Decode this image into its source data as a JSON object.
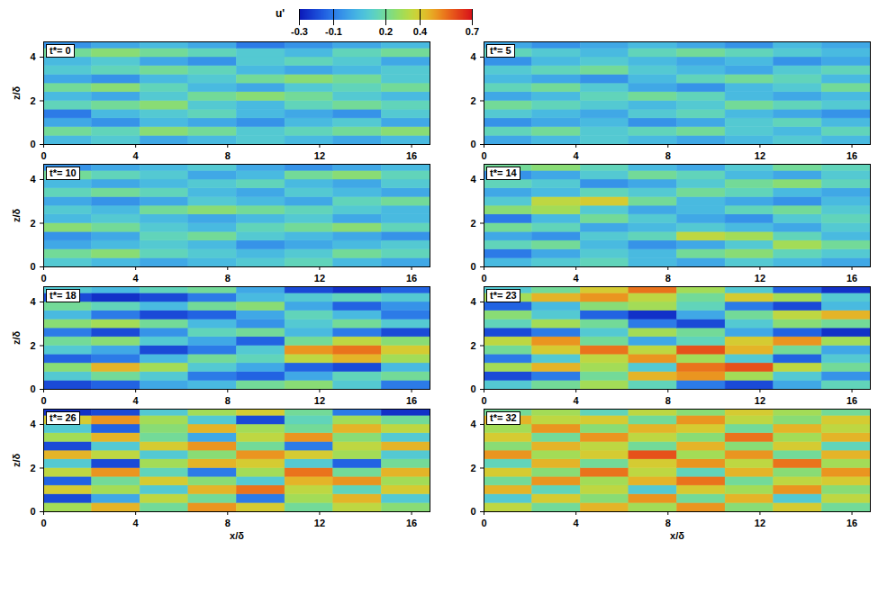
{
  "chart_data": {
    "type": "heatmap",
    "x_label": "x/δ",
    "y_label": "z/δ",
    "xlim": [
      0,
      16.8
    ],
    "ylim": [
      0,
      4.7
    ],
    "xticks": [
      0,
      4,
      8,
      12,
      16
    ],
    "yticks": [
      0,
      2,
      4
    ],
    "x_edges": [
      0,
      2.1,
      4.2,
      6.3,
      8.4,
      10.5,
      12.6,
      14.7,
      16.8
    ],
    "y_edges": [
      0,
      0.4,
      0.8,
      1.2,
      1.6,
      2.0,
      2.4,
      2.8,
      3.2,
      3.6,
      4.0,
      4.4,
      4.7
    ],
    "colorbar": {
      "label": "u'",
      "range": [
        -0.3,
        0.7
      ],
      "ticks": [
        -0.3,
        -0.1,
        0.2,
        0.4,
        0.7
      ]
    },
    "panels": [
      {
        "label": "t*= 0",
        "cells": [
          [
            0.05,
            0.1,
            0.0,
            0.05,
            0.1,
            0.05,
            0.0,
            0.05
          ],
          [
            0.2,
            0.15,
            0.25,
            0.2,
            0.1,
            0.15,
            0.2,
            0.25
          ],
          [
            0.0,
            -0.05,
            0.05,
            0.0,
            -0.05,
            0.05,
            0.1,
            0.0
          ],
          [
            -0.1,
            0.05,
            0.1,
            0.15,
            0.05,
            0.0,
            -0.05,
            0.1
          ],
          [
            0.15,
            0.2,
            0.25,
            0.1,
            0.05,
            0.15,
            0.2,
            0.15
          ],
          [
            0.05,
            0.0,
            0.1,
            0.2,
            0.25,
            0.2,
            0.1,
            0.05
          ],
          [
            0.2,
            0.25,
            0.15,
            0.05,
            0.0,
            0.1,
            0.15,
            0.2
          ],
          [
            0.0,
            -0.05,
            0.05,
            0.1,
            0.2,
            0.25,
            0.2,
            0.1
          ],
          [
            0.1,
            0.15,
            0.2,
            0.15,
            0.05,
            0.0,
            0.05,
            0.1
          ],
          [
            0.05,
            0.1,
            0.0,
            -0.05,
            0.1,
            0.15,
            0.1,
            0.0
          ],
          [
            0.2,
            0.25,
            0.2,
            0.15,
            0.1,
            0.05,
            0.15,
            0.2
          ],
          [
            -0.05,
            0.0,
            0.05,
            0.0,
            -0.1,
            -0.05,
            0.0,
            0.05
          ]
        ]
      },
      {
        "label": "t*= 5",
        "cells": [
          [
            0.0,
            0.05,
            0.1,
            0.05,
            0.0,
            0.05,
            0.1,
            0.05
          ],
          [
            0.15,
            0.2,
            0.1,
            0.15,
            0.2,
            0.1,
            0.05,
            0.15
          ],
          [
            -0.05,
            0.0,
            0.05,
            -0.05,
            0.0,
            0.1,
            0.15,
            0.05
          ],
          [
            0.1,
            0.05,
            0.0,
            0.1,
            0.15,
            0.05,
            0.0,
            -0.05
          ],
          [
            0.2,
            0.15,
            0.1,
            0.05,
            0.1,
            0.2,
            0.15,
            0.1
          ],
          [
            0.0,
            0.05,
            0.15,
            0.2,
            0.15,
            0.05,
            0.0,
            0.05
          ],
          [
            0.15,
            0.2,
            0.1,
            0.0,
            -0.05,
            0.05,
            0.1,
            0.2
          ],
          [
            0.05,
            0.0,
            -0.05,
            0.05,
            0.15,
            0.2,
            0.15,
            0.05
          ],
          [
            0.1,
            0.15,
            0.2,
            0.1,
            0.05,
            0.0,
            0.1,
            0.15
          ],
          [
            -0.05,
            0.05,
            0.1,
            0.05,
            0.0,
            0.05,
            -0.05,
            0.0
          ],
          [
            0.15,
            0.1,
            0.05,
            0.15,
            0.2,
            0.15,
            0.1,
            0.05
          ],
          [
            0.0,
            -0.05,
            0.0,
            0.05,
            0.0,
            -0.05,
            0.05,
            0.0
          ]
        ]
      },
      {
        "label": "t*= 10",
        "cells": [
          [
            0.1,
            0.05,
            0.0,
            0.05,
            0.1,
            0.15,
            0.05,
            0.0
          ],
          [
            0.2,
            0.25,
            0.15,
            0.1,
            0.05,
            0.1,
            0.2,
            0.15
          ],
          [
            0.0,
            0.05,
            0.1,
            0.05,
            -0.05,
            0.0,
            0.05,
            0.1
          ],
          [
            -0.05,
            0.0,
            0.15,
            0.2,
            0.1,
            0.05,
            0.0,
            -0.05
          ],
          [
            0.25,
            0.2,
            0.1,
            0.05,
            0.15,
            0.2,
            0.25,
            0.15
          ],
          [
            0.05,
            0.1,
            0.05,
            0.0,
            0.05,
            0.1,
            0.0,
            0.05
          ],
          [
            0.1,
            0.05,
            0.2,
            0.25,
            0.2,
            0.15,
            0.1,
            0.05
          ],
          [
            0.0,
            -0.05,
            0.0,
            0.1,
            0.05,
            0.0,
            0.15,
            0.2
          ],
          [
            0.15,
            0.2,
            0.15,
            0.05,
            0.0,
            0.1,
            0.05,
            0.0
          ],
          [
            0.05,
            0.0,
            0.05,
            0.1,
            0.15,
            0.05,
            0.0,
            0.1
          ],
          [
            0.2,
            0.15,
            0.1,
            0.0,
            0.05,
            0.2,
            0.25,
            0.15
          ],
          [
            -0.05,
            0.0,
            0.05,
            0.1,
            0.0,
            -0.05,
            0.0,
            0.05
          ]
        ]
      },
      {
        "label": "t*= 14",
        "cells": [
          [
            0.05,
            0.1,
            0.15,
            0.05,
            0.0,
            0.1,
            0.05,
            0.0
          ],
          [
            -0.1,
            0.0,
            0.1,
            0.05,
            0.2,
            0.25,
            0.15,
            0.1
          ],
          [
            0.15,
            0.2,
            0.05,
            -0.05,
            0.0,
            0.1,
            0.3,
            0.2
          ],
          [
            0.0,
            -0.05,
            0.1,
            0.15,
            0.35,
            0.3,
            0.15,
            0.05
          ],
          [
            0.2,
            0.15,
            0.0,
            0.05,
            0.1,
            0.05,
            0.0,
            0.1
          ],
          [
            -0.1,
            0.05,
            0.2,
            0.1,
            0.0,
            -0.05,
            0.1,
            0.15
          ],
          [
            0.25,
            0.3,
            0.1,
            0.0,
            0.05,
            0.15,
            0.2,
            0.1
          ],
          [
            0.1,
            0.35,
            0.4,
            0.2,
            0.05,
            0.0,
            -0.05,
            0.05
          ],
          [
            0.0,
            0.05,
            0.15,
            0.1,
            0.2,
            0.15,
            0.05,
            0.0
          ],
          [
            0.15,
            0.1,
            -0.05,
            0.0,
            0.1,
            0.2,
            0.25,
            0.15
          ],
          [
            -0.05,
            0.0,
            0.1,
            0.2,
            0.15,
            0.05,
            0.0,
            0.1
          ],
          [
            0.2,
            0.25,
            0.15,
            0.05,
            0.0,
            0.1,
            0.2,
            0.15
          ]
        ]
      },
      {
        "label": "t*= 18",
        "cells": [
          [
            -0.2,
            -0.15,
            0.0,
            0.05,
            0.2,
            0.25,
            0.1,
            -0.1
          ],
          [
            0.1,
            0.2,
            0.1,
            -0.1,
            -0.15,
            0.0,
            0.15,
            0.2
          ],
          [
            0.25,
            0.45,
            0.3,
            0.1,
            0.0,
            -0.15,
            -0.2,
            0.05
          ],
          [
            -0.15,
            -0.1,
            0.05,
            0.2,
            0.15,
            0.35,
            0.45,
            0.3
          ],
          [
            0.1,
            0.0,
            -0.2,
            -0.1,
            0.1,
            0.5,
            0.55,
            0.4
          ],
          [
            0.2,
            0.25,
            0.1,
            0.0,
            -0.15,
            0.2,
            0.35,
            0.25
          ],
          [
            -0.1,
            -0.2,
            -0.05,
            0.15,
            0.2,
            0.05,
            -0.1,
            -0.2
          ],
          [
            0.25,
            0.3,
            0.2,
            0.05,
            -0.05,
            0.1,
            0.2,
            0.1
          ],
          [
            0.05,
            -0.1,
            -0.2,
            -0.15,
            0.0,
            0.15,
            0.05,
            -0.1
          ],
          [
            0.2,
            0.15,
            0.05,
            0.2,
            0.25,
            0.0,
            -0.15,
            -0.05
          ],
          [
            -0.2,
            -0.25,
            -0.2,
            -0.1,
            0.05,
            0.1,
            0.15,
            0.1
          ],
          [
            0.1,
            0.05,
            0.15,
            0.2,
            0.0,
            -0.2,
            -0.25,
            -0.15
          ]
        ]
      },
      {
        "label": "t*= 23",
        "cells": [
          [
            0.1,
            0.2,
            0.3,
            0.15,
            -0.1,
            -0.2,
            0.0,
            0.15
          ],
          [
            -0.2,
            -0.1,
            0.2,
            0.45,
            0.5,
            0.3,
            0.1,
            -0.05
          ],
          [
            0.3,
            0.45,
            0.3,
            0.1,
            0.55,
            0.6,
            0.35,
            0.2
          ],
          [
            -0.1,
            0.1,
            0.35,
            0.5,
            0.3,
            0.1,
            -0.15,
            0.1
          ],
          [
            0.2,
            0.4,
            0.55,
            0.35,
            0.6,
            0.45,
            0.2,
            0.0
          ],
          [
            0.35,
            0.5,
            0.2,
            0.0,
            0.15,
            0.4,
            0.5,
            0.3
          ],
          [
            -0.2,
            -0.1,
            0.1,
            0.3,
            0.2,
            0.0,
            -0.15,
            -0.25
          ],
          [
            0.15,
            0.3,
            0.2,
            -0.1,
            -0.2,
            0.1,
            0.25,
            0.2
          ],
          [
            0.25,
            0.1,
            -0.15,
            -0.25,
            0.0,
            0.2,
            0.35,
            0.45
          ],
          [
            -0.15,
            0.05,
            0.25,
            0.3,
            0.15,
            -0.1,
            -0.2,
            0.05
          ],
          [
            0.3,
            0.45,
            0.5,
            0.35,
            0.2,
            0.4,
            0.3,
            0.1
          ],
          [
            0.1,
            0.2,
            0.4,
            0.55,
            0.3,
            0.1,
            -0.15,
            -0.25
          ]
        ]
      },
      {
        "label": "t*= 26",
        "cells": [
          [
            0.3,
            0.45,
            0.2,
            0.5,
            0.4,
            0.2,
            0.35,
            0.25
          ],
          [
            -0.2,
            0.0,
            0.35,
            0.2,
            -0.1,
            0.3,
            0.45,
            0.1
          ],
          [
            0.4,
            0.3,
            0.1,
            0.45,
            0.55,
            0.35,
            0.15,
            0.4
          ],
          [
            -0.15,
            0.2,
            0.4,
            0.25,
            0.1,
            0.45,
            0.5,
            0.3
          ],
          [
            0.35,
            0.5,
            0.15,
            -0.1,
            0.3,
            0.55,
            0.2,
            0.45
          ],
          [
            0.1,
            -0.2,
            0.3,
            0.45,
            0.4,
            0.1,
            -0.15,
            0.2
          ],
          [
            0.45,
            0.35,
            0.1,
            0.25,
            0.5,
            0.4,
            0.3,
            0.1
          ],
          [
            -0.2,
            0.1,
            0.4,
            0.5,
            0.2,
            -0.1,
            0.35,
            0.45
          ],
          [
            0.3,
            0.45,
            0.2,
            0.0,
            0.35,
            0.5,
            0.25,
            0.1
          ],
          [
            0.1,
            -0.15,
            0.25,
            0.45,
            0.3,
            0.2,
            0.45,
            0.35
          ],
          [
            0.4,
            0.5,
            0.3,
            0.1,
            -0.2,
            0.15,
            0.3,
            0.2
          ],
          [
            -0.25,
            -0.2,
            0.1,
            0.3,
            0.4,
            0.2,
            -0.1,
            -0.25
          ]
        ]
      },
      {
        "label": "t*= 32",
        "cells": [
          [
            0.35,
            0.2,
            0.45,
            0.3,
            0.5,
            0.25,
            0.4,
            0.2
          ],
          [
            0.1,
            0.4,
            0.25,
            0.5,
            0.2,
            0.45,
            0.1,
            0.35
          ],
          [
            0.45,
            0.15,
            0.35,
            0.1,
            0.4,
            0.3,
            0.5,
            0.25
          ],
          [
            0.2,
            0.5,
            0.3,
            0.45,
            0.55,
            0.2,
            0.35,
            0.4
          ],
          [
            0.4,
            0.25,
            0.55,
            0.35,
            0.15,
            0.45,
            0.25,
            0.5
          ],
          [
            0.15,
            0.45,
            0.2,
            0.4,
            0.5,
            0.35,
            0.55,
            0.3
          ],
          [
            0.5,
            0.3,
            0.4,
            0.6,
            0.3,
            0.5,
            0.2,
            0.45
          ],
          [
            0.25,
            0.45,
            0.35,
            0.2,
            0.45,
            0.25,
            0.4,
            0.15
          ],
          [
            0.4,
            0.2,
            0.5,
            0.35,
            0.25,
            0.55,
            0.3,
            0.45
          ],
          [
            0.3,
            0.5,
            0.25,
            0.45,
            0.4,
            0.2,
            0.45,
            0.35
          ],
          [
            0.45,
            0.35,
            0.4,
            0.2,
            0.5,
            0.35,
            0.25,
            0.4
          ],
          [
            0.2,
            0.3,
            0.15,
            0.35,
            0.25,
            0.4,
            0.3,
            0.2
          ]
        ]
      }
    ]
  }
}
